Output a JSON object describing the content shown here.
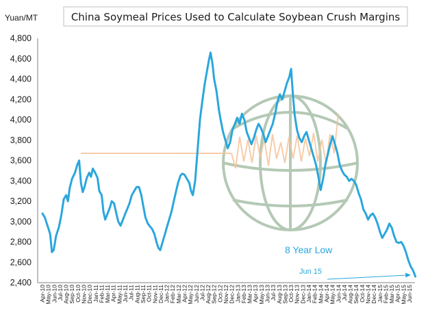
{
  "chart_data": {
    "type": "line",
    "title": "China Soymeal Prices Used to Calculate Soybean Crush Margins",
    "ylabel": "Yuan/MT",
    "xlabel": "",
    "ylim": [
      2400,
      4800
    ],
    "yticks": [
      "2,400",
      "2,600",
      "2,800",
      "3,000",
      "3,200",
      "3,400",
      "3,600",
      "3,800",
      "4,000",
      "4,200",
      "4,400",
      "4,600",
      "4,800"
    ],
    "x_tick_labels": [
      "Apr-10",
      "May-10",
      "Jun-10",
      "Jul-10",
      "Aug-10",
      "Sep-10",
      "Oct-10",
      "Nov-10",
      "Dec-10",
      "Jan-11",
      "Feb-11",
      "Mar-11",
      "Apr-11",
      "May-11",
      "Jun-11",
      "Jul-11",
      "Aug-11",
      "Sep-11",
      "Oct-11",
      "Nov-11",
      "Dec-11",
      "Jan-12",
      "Feb-12",
      "Mar-12",
      "Apr-12",
      "May-12",
      "Jun-12",
      "Jul-12",
      "Aug-12",
      "Sep-12",
      "Oct-12",
      "Nov-12",
      "Dec-12",
      "Jan-13",
      "Feb-13",
      "Mar-13",
      "Apr-13",
      "May-13",
      "Jun-13",
      "Jul-13",
      "Aug-13",
      "Sep-13",
      "Oct-13",
      "Nov-13",
      "Dec-13",
      "Jan-14",
      "Feb-14",
      "Mar-14",
      "Apr-14",
      "May-14",
      "Jun-14",
      "Jul-14",
      "Aug-14",
      "Sep-14",
      "Oct-14",
      "Nov-14",
      "Dec-14",
      "Jan-15",
      "Feb-15",
      "Mar-15",
      "Apr-15",
      "May-15",
      "Jun-15"
    ],
    "grid": false,
    "line_color": "#2aa6dd",
    "series": [
      {
        "points": [
          [
            0,
            3080
          ],
          [
            0.4,
            3040
          ],
          [
            0.9,
            2950
          ],
          [
            1.3,
            2880
          ],
          [
            1.6,
            2700
          ],
          [
            1.9,
            2720
          ],
          [
            2.3,
            2860
          ],
          [
            2.8,
            2950
          ],
          [
            3.2,
            3070
          ],
          [
            3.6,
            3220
          ],
          [
            4.0,
            3260
          ],
          [
            4.3,
            3200
          ],
          [
            4.6,
            3330
          ],
          [
            5.0,
            3420
          ],
          [
            5.5,
            3480
          ],
          [
            5.9,
            3560
          ],
          [
            6.2,
            3600
          ],
          [
            6.5,
            3380
          ],
          [
            6.8,
            3290
          ],
          [
            7.1,
            3340
          ],
          [
            7.5,
            3430
          ],
          [
            7.9,
            3480
          ],
          [
            8.2,
            3440
          ],
          [
            8.5,
            3520
          ],
          [
            8.9,
            3480
          ],
          [
            9.3,
            3430
          ],
          [
            9.6,
            3300
          ],
          [
            10.0,
            3260
          ],
          [
            10.3,
            3100
          ],
          [
            10.6,
            3020
          ],
          [
            11.0,
            3080
          ],
          [
            11.4,
            3140
          ],
          [
            11.7,
            3200
          ],
          [
            12.1,
            3180
          ],
          [
            12.4,
            3100
          ],
          [
            12.8,
            3000
          ],
          [
            13.2,
            2960
          ],
          [
            13.6,
            3020
          ],
          [
            14.0,
            3080
          ],
          [
            14.3,
            3120
          ],
          [
            14.7,
            3180
          ],
          [
            15.1,
            3260
          ],
          [
            15.5,
            3300
          ],
          [
            15.9,
            3340
          ],
          [
            16.3,
            3340
          ],
          [
            16.7,
            3260
          ],
          [
            17.0,
            3160
          ],
          [
            17.4,
            3040
          ],
          [
            17.8,
            2980
          ],
          [
            18.2,
            2950
          ],
          [
            18.5,
            2930
          ],
          [
            18.9,
            2880
          ],
          [
            19.3,
            2790
          ],
          [
            19.6,
            2740
          ],
          [
            19.9,
            2720
          ],
          [
            20.3,
            2800
          ],
          [
            20.7,
            2880
          ],
          [
            21.0,
            2940
          ],
          [
            21.4,
            3020
          ],
          [
            21.8,
            3100
          ],
          [
            22.1,
            3180
          ],
          [
            22.5,
            3280
          ],
          [
            22.9,
            3380
          ],
          [
            23.3,
            3450
          ],
          [
            23.6,
            3470
          ],
          [
            24.0,
            3460
          ],
          [
            24.4,
            3420
          ],
          [
            24.8,
            3380
          ],
          [
            25.1,
            3300
          ],
          [
            25.4,
            3260
          ],
          [
            25.8,
            3400
          ],
          [
            26.2,
            3700
          ],
          [
            26.6,
            4000
          ],
          [
            27.0,
            4180
          ],
          [
            27.4,
            4350
          ],
          [
            27.8,
            4480
          ],
          [
            28.1,
            4580
          ],
          [
            28.4,
            4660
          ],
          [
            28.7,
            4560
          ],
          [
            29.0,
            4400
          ],
          [
            29.4,
            4280
          ],
          [
            29.8,
            4100
          ],
          [
            30.1,
            4000
          ],
          [
            30.5,
            3880
          ],
          [
            30.9,
            3800
          ],
          [
            31.3,
            3720
          ],
          [
            31.7,
            3780
          ],
          [
            32.1,
            3900
          ],
          [
            32.5,
            3960
          ],
          [
            32.9,
            4020
          ],
          [
            33.3,
            3960
          ],
          [
            33.7,
            4060
          ],
          [
            34.1,
            4000
          ],
          [
            34.5,
            3880
          ],
          [
            34.9,
            3820
          ],
          [
            35.3,
            3760
          ],
          [
            35.7,
            3820
          ],
          [
            36.1,
            3900
          ],
          [
            36.5,
            3960
          ],
          [
            36.9,
            3920
          ],
          [
            37.3,
            3860
          ],
          [
            37.7,
            3780
          ],
          [
            38.1,
            3840
          ],
          [
            38.5,
            3900
          ],
          [
            38.9,
            3960
          ],
          [
            39.3,
            4060
          ],
          [
            39.7,
            4180
          ],
          [
            40.1,
            4250
          ],
          [
            40.5,
            4200
          ],
          [
            40.9,
            4280
          ],
          [
            41.3,
            4360
          ],
          [
            41.7,
            4420
          ],
          [
            42.0,
            4500
          ],
          [
            42.3,
            4250
          ],
          [
            42.6,
            4050
          ],
          [
            43.0,
            3900
          ],
          [
            43.4,
            3820
          ],
          [
            43.8,
            3780
          ],
          [
            44.2,
            3840
          ],
          [
            44.6,
            3880
          ],
          [
            45.0,
            3800
          ],
          [
            45.4,
            3720
          ],
          [
            45.8,
            3640
          ],
          [
            46.2,
            3560
          ],
          [
            46.6,
            3440
          ],
          [
            47.0,
            3310
          ],
          [
            47.4,
            3420
          ],
          [
            47.8,
            3560
          ],
          [
            48.2,
            3660
          ],
          [
            48.6,
            3760
          ],
          [
            49.0,
            3840
          ],
          [
            49.4,
            3760
          ],
          [
            49.8,
            3680
          ],
          [
            50.2,
            3560
          ],
          [
            50.6,
            3500
          ],
          [
            51.0,
            3460
          ],
          [
            51.4,
            3440
          ],
          [
            51.8,
            3400
          ],
          [
            52.2,
            3420
          ],
          [
            52.6,
            3400
          ],
          [
            53.0,
            3360
          ],
          [
            53.4,
            3280
          ],
          [
            53.8,
            3220
          ],
          [
            54.2,
            3120
          ],
          [
            54.6,
            3080
          ],
          [
            55.0,
            3020
          ],
          [
            55.4,
            3060
          ],
          [
            55.8,
            3080
          ],
          [
            56.2,
            3040
          ],
          [
            56.6,
            2980
          ],
          [
            57.0,
            2900
          ],
          [
            57.4,
            2840
          ],
          [
            57.8,
            2880
          ],
          [
            58.2,
            2920
          ],
          [
            58.6,
            2980
          ],
          [
            59.0,
            2940
          ],
          [
            59.4,
            2860
          ],
          [
            59.8,
            2800
          ],
          [
            60.2,
            2790
          ],
          [
            60.6,
            2800
          ],
          [
            61.0,
            2760
          ],
          [
            61.4,
            2700
          ],
          [
            61.8,
            2620
          ],
          [
            62.2,
            2560
          ],
          [
            62.6,
            2520
          ],
          [
            63.0,
            2460
          ]
        ]
      }
    ],
    "annotations": [
      {
        "text": "8 Year Low"
      },
      {
        "text": "Jun 15"
      }
    ]
  }
}
